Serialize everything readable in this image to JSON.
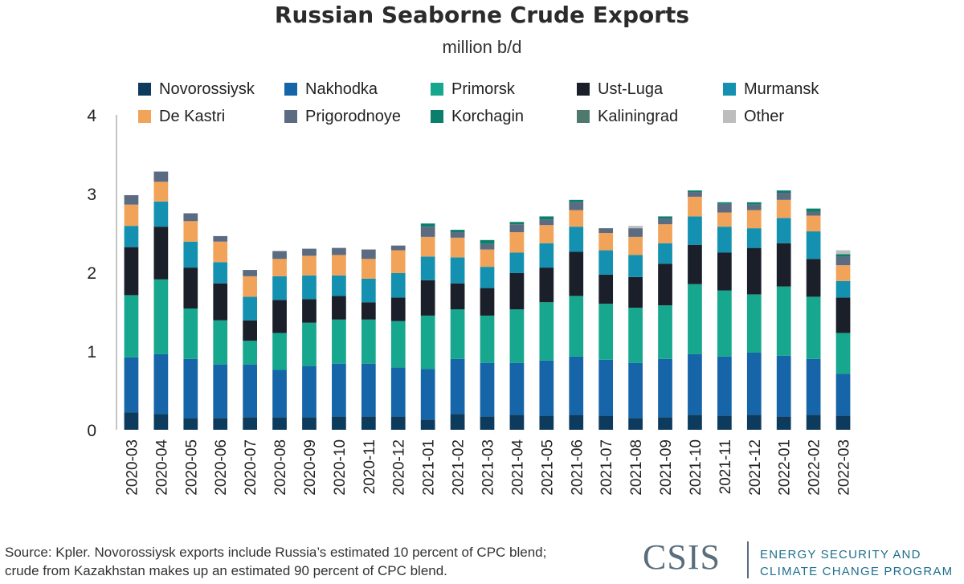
{
  "chart_data": {
    "type": "bar",
    "stacked": true,
    "title": "Russian Seaborne Crude Exports",
    "subtitle": "million b/d",
    "xlabel": "",
    "ylabel": "",
    "ylim": [
      0,
      4
    ],
    "yticks": [
      0,
      1,
      2,
      3,
      4
    ],
    "grid": false,
    "legend_position": "top",
    "categories": [
      "2020-03",
      "2020-04",
      "2020-05",
      "2020-06",
      "2020-07",
      "2020-08",
      "2020-09",
      "2020-10",
      "2020-11",
      "2020-12",
      "2021-01",
      "2021-02",
      "2021-03",
      "2021-04",
      "2021-05",
      "2021-06",
      "2021-07",
      "2021-08",
      "2021-09",
      "2021-10",
      "2021-11",
      "2021-12",
      "2022-01",
      "2022-02",
      "2022-03"
    ],
    "series": [
      {
        "name": "Novorossiysk",
        "color": "#0d3b5e",
        "values": [
          0.22,
          0.2,
          0.15,
          0.15,
          0.16,
          0.16,
          0.16,
          0.17,
          0.17,
          0.17,
          0.13,
          0.2,
          0.17,
          0.19,
          0.18,
          0.19,
          0.18,
          0.15,
          0.16,
          0.19,
          0.18,
          0.19,
          0.17,
          0.19,
          0.18
        ]
      },
      {
        "name": "Nakhodka",
        "color": "#1565a8",
        "values": [
          0.7,
          0.76,
          0.75,
          0.68,
          0.67,
          0.6,
          0.65,
          0.67,
          0.67,
          0.62,
          0.64,
          0.7,
          0.68,
          0.66,
          0.7,
          0.74,
          0.71,
          0.7,
          0.74,
          0.77,
          0.75,
          0.79,
          0.77,
          0.71,
          0.53
        ]
      },
      {
        "name": "Primorsk",
        "color": "#16a78e",
        "values": [
          0.79,
          0.95,
          0.64,
          0.56,
          0.3,
          0.47,
          0.55,
          0.56,
          0.56,
          0.59,
          0.68,
          0.63,
          0.6,
          0.68,
          0.74,
          0.77,
          0.71,
          0.7,
          0.68,
          0.89,
          0.84,
          0.74,
          0.88,
          0.79,
          0.52
        ]
      },
      {
        "name": "Ust-Luga",
        "color": "#1b1f2a",
        "values": [
          0.61,
          0.67,
          0.52,
          0.47,
          0.26,
          0.42,
          0.3,
          0.3,
          0.22,
          0.3,
          0.45,
          0.33,
          0.35,
          0.46,
          0.44,
          0.56,
          0.37,
          0.39,
          0.53,
          0.5,
          0.48,
          0.59,
          0.55,
          0.48,
          0.45
        ]
      },
      {
        "name": "Murmansk",
        "color": "#1491b0",
        "values": [
          0.27,
          0.32,
          0.33,
          0.27,
          0.3,
          0.3,
          0.3,
          0.26,
          0.3,
          0.31,
          0.3,
          0.33,
          0.27,
          0.26,
          0.31,
          0.32,
          0.31,
          0.28,
          0.26,
          0.36,
          0.33,
          0.25,
          0.32,
          0.35,
          0.21
        ]
      },
      {
        "name": "De Kastri",
        "color": "#f2a35a",
        "values": [
          0.27,
          0.25,
          0.26,
          0.26,
          0.26,
          0.22,
          0.25,
          0.26,
          0.25,
          0.29,
          0.25,
          0.25,
          0.22,
          0.26,
          0.23,
          0.21,
          0.22,
          0.23,
          0.24,
          0.25,
          0.18,
          0.23,
          0.23,
          0.2,
          0.2
        ]
      },
      {
        "name": "Prigorodnoye",
        "color": "#5b6b82",
        "values": [
          0.12,
          0.13,
          0.1,
          0.07,
          0.08,
          0.1,
          0.09,
          0.09,
          0.12,
          0.06,
          0.13,
          0.07,
          0.07,
          0.1,
          0.07,
          0.1,
          0.06,
          0.11,
          0.07,
          0.06,
          0.11,
          0.07,
          0.09,
          0.05,
          0.11
        ]
      },
      {
        "name": "Korchagin",
        "color": "#0a7f6c",
        "values": [
          0,
          0,
          0,
          0,
          0,
          0,
          0,
          0,
          0,
          0,
          0.04,
          0.03,
          0.05,
          0.03,
          0.04,
          0.03,
          0,
          0,
          0.03,
          0.02,
          0.02,
          0.03,
          0.03,
          0.04,
          0.03
        ]
      },
      {
        "name": "Kaliningrad",
        "color": "#4e7a6e",
        "values": [
          0,
          0,
          0,
          0,
          0,
          0,
          0,
          0,
          0,
          0,
          0,
          0,
          0,
          0,
          0,
          0,
          0,
          0,
          0,
          0,
          0,
          0,
          0,
          0,
          0
        ]
      },
      {
        "name": "Other",
        "color": "#bdbdbd",
        "values": [
          0,
          0,
          0,
          0,
          0,
          0,
          0,
          0,
          0,
          0,
          0,
          0,
          0,
          0,
          0,
          0,
          0,
          0.03,
          0,
          0,
          0,
          0,
          0,
          0,
          0.05
        ]
      }
    ]
  },
  "footer": {
    "source_line1": "Source: Kpler. Novorossiysk exports include Russia’s estimated 10 percent of CPC blend;",
    "source_line2": "crude from Kazakhstan makes up an estimated 90 percent of CPC blend."
  },
  "logo": {
    "wordmark": "CSIS",
    "program_line1": "ENERGY SECURITY AND",
    "program_line2": "CLIMATE CHANGE PROGRAM"
  }
}
